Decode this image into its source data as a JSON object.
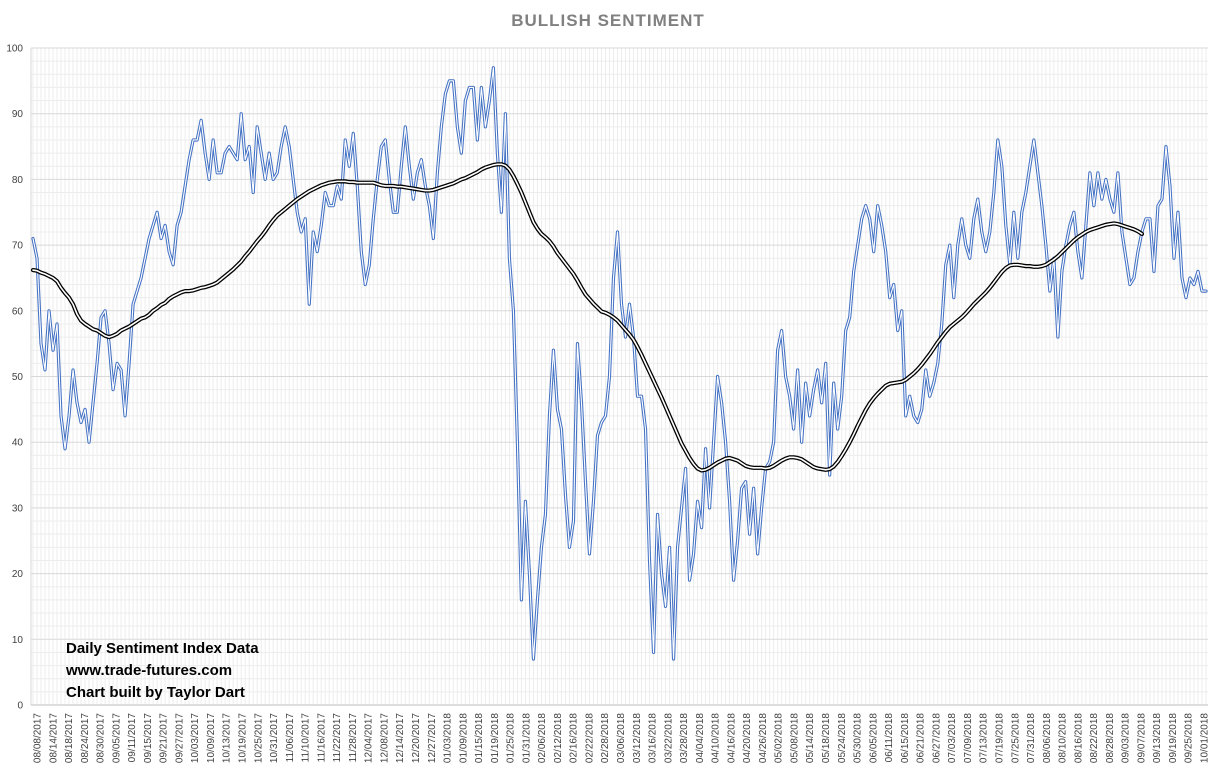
{
  "chart_data": {
    "type": "line",
    "title": "BULLISH SENTIMENT",
    "xlabel": "",
    "ylabel": "",
    "ylim": [
      0,
      100
    ],
    "y_ticks": [
      0,
      10,
      20,
      30,
      40,
      50,
      60,
      70,
      80,
      90,
      100
    ],
    "grid": true,
    "legend": "none",
    "x_tick_labels": [
      "08/08/2017",
      "08/14/2017",
      "08/18/2017",
      "08/24/2017",
      "08/30/2017",
      "09/05/2017",
      "09/11/2017",
      "09/15/2017",
      "09/21/2017",
      "09/27/2017",
      "10/03/2017",
      "10/09/2017",
      "10/13/2017",
      "10/19/2017",
      "10/25/2017",
      "10/31/2017",
      "11/06/2017",
      "11/10/2017",
      "11/16/2017",
      "11/22/2017",
      "11/28/2017",
      "12/04/2017",
      "12/08/2017",
      "12/14/2017",
      "12/20/2017",
      "12/27/2017",
      "01/03/2018",
      "01/09/2018",
      "01/15/2018",
      "01/19/2018",
      "01/25/2018",
      "01/31/2018",
      "02/06/2018",
      "02/12/2018",
      "02/16/2018",
      "02/22/2018",
      "02/28/2018",
      "03/06/2018",
      "03/12/2018",
      "03/16/2018",
      "03/22/2018",
      "03/28/2018",
      "04/04/2018",
      "04/10/2018",
      "04/16/2018",
      "04/20/2018",
      "04/26/2018",
      "05/02/2018",
      "05/08/2018",
      "05/14/2018",
      "05/18/2018",
      "05/24/2018",
      "05/30/2018",
      "06/05/2018",
      "06/11/2018",
      "06/15/2018",
      "06/21/2018",
      "06/27/2018",
      "07/03/2018",
      "07/09/2018",
      "07/13/2018",
      "07/19/2018",
      "07/25/2018",
      "07/31/2018",
      "08/06/2018",
      "08/10/2018",
      "08/16/2018",
      "08/22/2018",
      "08/28/2018",
      "09/03/2018",
      "09/07/2018",
      "09/13/2018",
      "09/19/2018",
      "09/25/2018",
      "10/01/2018"
    ],
    "series": [
      {
        "name": "",
        "color": "#4472c4",
        "style": "double-line",
        "values": [
          71,
          68,
          55,
          51,
          60,
          54,
          58,
          44,
          39,
          44,
          51,
          46,
          43,
          45,
          40,
          46,
          52,
          59,
          60,
          55,
          48,
          52,
          51,
          44,
          52,
          61,
          63,
          65,
          68,
          71,
          73,
          75,
          71,
          73,
          69,
          67,
          73,
          75,
          79,
          83,
          86,
          86,
          89,
          84,
          80,
          86,
          81,
          81,
          84,
          85,
          84,
          83,
          90,
          83,
          85,
          78,
          88,
          84,
          80,
          84,
          80,
          81,
          85,
          88,
          85,
          80,
          75,
          72,
          74,
          61,
          72,
          69,
          73,
          78,
          76,
          76,
          79,
          77,
          86,
          82,
          87,
          79,
          69,
          64,
          67,
          74,
          80,
          85,
          86,
          80,
          75,
          75,
          82,
          88,
          82,
          77,
          81,
          83,
          79,
          76,
          71,
          81,
          88,
          93,
          95,
          95,
          88,
          84,
          92,
          94,
          94,
          86,
          94,
          88,
          92,
          97,
          84,
          75,
          90,
          68,
          60,
          40,
          16,
          31,
          20,
          7,
          16,
          24,
          29,
          44,
          54,
          45,
          42,
          32,
          24,
          28,
          55,
          46,
          34,
          23,
          31,
          41,
          43,
          44,
          50,
          65,
          72,
          61,
          56,
          61,
          56,
          47,
          47,
          42,
          22,
          8,
          29,
          20,
          15,
          24,
          7,
          24,
          30,
          36,
          19,
          23,
          31,
          27,
          39,
          30,
          40,
          50,
          46,
          40,
          31,
          19,
          25,
          33,
          34,
          26,
          33,
          23,
          30,
          36,
          37,
          40,
          54,
          57,
          50,
          47,
          42,
          51,
          40,
          49,
          44,
          48,
          51,
          46,
          52,
          35,
          49,
          42,
          47,
          57,
          59,
          66,
          70,
          74,
          76,
          74,
          69,
          76,
          73,
          69,
          62,
          64,
          57,
          60,
          44,
          47,
          44,
          43,
          45,
          51,
          47,
          49,
          52,
          58,
          67,
          70,
          62,
          70,
          74,
          70,
          68,
          74,
          77,
          72,
          69,
          72,
          78,
          86,
          82,
          73,
          67,
          75,
          68,
          75,
          78,
          82,
          86,
          81,
          76,
          70,
          63,
          68,
          56,
          66,
          70,
          73,
          75,
          69,
          65,
          73,
          81,
          76,
          81,
          77,
          80,
          77,
          75,
          81,
          72,
          68,
          64,
          65,
          69,
          72,
          74,
          74,
          66,
          76,
          77,
          85,
          79,
          68,
          75,
          65,
          62,
          65,
          64,
          66,
          63,
          63
        ]
      },
      {
        "name": "",
        "color": "#000000",
        "style": "double-line",
        "values": [
          66.2,
          66.1,
          65.8,
          65.6,
          65.3,
          65.0,
          64.5,
          63.5,
          62.7,
          62.0,
          61.0,
          59.5,
          58.5,
          58.0,
          57.6,
          57.2,
          57.0,
          56.6,
          56.2,
          56.0,
          56.2,
          56.5,
          57.0,
          57.3,
          57.6,
          58.0,
          58.4,
          58.8,
          59.0,
          59.4,
          60.0,
          60.4,
          60.9,
          61.2,
          61.8,
          62.2,
          62.5,
          62.8,
          63.0,
          63.0,
          63.1,
          63.3,
          63.5,
          63.6,
          63.8,
          64.0,
          64.3,
          64.8,
          65.3,
          65.8,
          66.3,
          66.9,
          67.5,
          68.3,
          69.0,
          69.8,
          70.6,
          71.3,
          72.1,
          73.0,
          73.8,
          74.5,
          75.0,
          75.5,
          76.0,
          76.5,
          77.0,
          77.4,
          77.8,
          78.2,
          78.5,
          78.8,
          79.1,
          79.3,
          79.5,
          79.6,
          79.7,
          79.7,
          79.7,
          79.6,
          79.6,
          79.5,
          79.5,
          79.5,
          79.5,
          79.5,
          79.3,
          79.1,
          79.0,
          79.0,
          79.0,
          78.9,
          78.9,
          78.8,
          78.7,
          78.6,
          78.5,
          78.4,
          78.3,
          78.3,
          78.4,
          78.6,
          78.8,
          79.0,
          79.2,
          79.4,
          79.7,
          80.0,
          80.2,
          80.5,
          80.8,
          81.1,
          81.5,
          81.8,
          82.0,
          82.2,
          82.3,
          82.3,
          82.1,
          81.5,
          80.5,
          79.3,
          78.0,
          76.5,
          75.0,
          73.5,
          72.5,
          71.7,
          71.2,
          70.6,
          69.8,
          68.8,
          68.0,
          67.2,
          66.4,
          65.6,
          64.6,
          63.5,
          62.5,
          61.8,
          61.1,
          60.5,
          59.9,
          59.7,
          59.4,
          59.0,
          58.5,
          57.8,
          57.1,
          56.4,
          55.6,
          54.5,
          53.3,
          52.0,
          50.7,
          49.4,
          48.1,
          46.8,
          45.4,
          44.0,
          42.6,
          41.2,
          39.8,
          38.7,
          37.6,
          36.7,
          36.0,
          35.7,
          35.8,
          36.1,
          36.5,
          36.9,
          37.2,
          37.5,
          37.6,
          37.4,
          37.2,
          36.8,
          36.4,
          36.2,
          36.1,
          36.1,
          36.1,
          36.0,
          36.1,
          36.4,
          36.8,
          37.2,
          37.5,
          37.7,
          37.7,
          37.6,
          37.4,
          37.0,
          36.6,
          36.2,
          36.0,
          35.9,
          35.8,
          35.9,
          36.3,
          37.0,
          37.9,
          38.9,
          40.0,
          41.2,
          42.5,
          43.7,
          44.9,
          45.9,
          46.7,
          47.4,
          48.0,
          48.6,
          48.9,
          49.0,
          49.1,
          49.2,
          49.5,
          50.0,
          50.5,
          51.1,
          51.8,
          52.6,
          53.4,
          54.3,
          55.2,
          56.0,
          56.8,
          57.5,
          58.0,
          58.5,
          59.0,
          59.6,
          60.3,
          61.0,
          61.6,
          62.2,
          62.8,
          63.5,
          64.3,
          65.1,
          65.9,
          66.5,
          66.9,
          67.0,
          67.0,
          66.9,
          66.8,
          66.8,
          66.7,
          66.7,
          66.8,
          67.0,
          67.4,
          67.8,
          68.3,
          68.9,
          69.5,
          70.1,
          70.7,
          71.2,
          71.6,
          72.0,
          72.3,
          72.5,
          72.7,
          72.9,
          73.1,
          73.2,
          73.3,
          73.2,
          73.0,
          72.8,
          72.6,
          72.4,
          72.1,
          71.7
        ]
      }
    ],
    "annotations": [
      "Daily Sentiment Index Data",
      "www.trade-futures.com",
      "Chart built by Taylor Dart"
    ]
  }
}
